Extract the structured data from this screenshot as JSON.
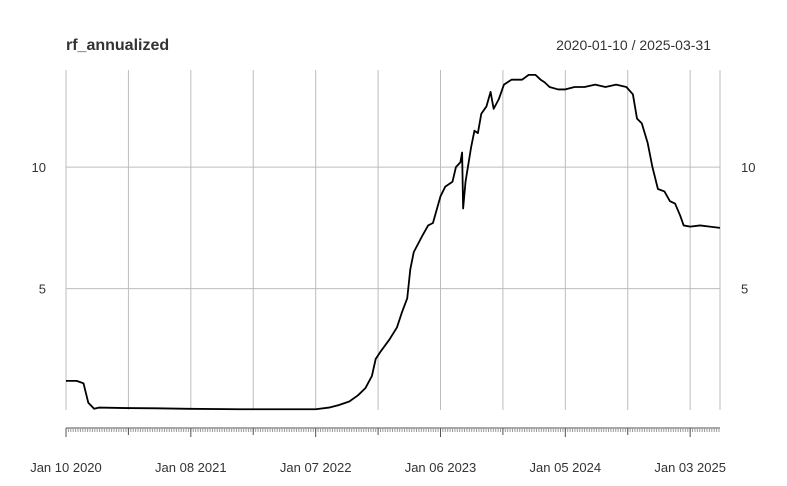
{
  "chart_data": {
    "type": "line",
    "title": "rf_annualized",
    "date_range": "2020-01-10 / 2025-03-31",
    "x_start": "2020-01-10",
    "x_end": "2025-03-31",
    "ylim": [
      0,
      14
    ],
    "y_ticks": [
      5,
      10
    ],
    "y_tick_labels": [
      "5",
      "10"
    ],
    "grid": true,
    "x_major_ticks": [
      {
        "date": "2020-01-10",
        "label": "Jan 10 2020"
      },
      {
        "date": "2021-01-08",
        "label": "Jan 08 2021"
      },
      {
        "date": "2022-01-07",
        "label": "Jan 07 2022"
      },
      {
        "date": "2023-01-06",
        "label": "Jan 06 2023"
      },
      {
        "date": "2024-01-05",
        "label": "Jan 05 2024"
      },
      {
        "date": "2025-01-03",
        "label": "Jan 03 2025"
      }
    ],
    "x_grid_dates": [
      "2020-07-10",
      "2021-07-09",
      "2022-07-08",
      "2023-07-07",
      "2024-07-05"
    ],
    "series": [
      {
        "name": "",
        "points": [
          [
            "2020-01-10",
            1.2
          ],
          [
            "2020-02-10",
            1.2
          ],
          [
            "2020-03-01",
            1.1
          ],
          [
            "2020-03-15",
            0.3
          ],
          [
            "2020-04-01",
            0.05
          ],
          [
            "2020-04-15",
            0.1
          ],
          [
            "2020-07-01",
            0.08
          ],
          [
            "2020-10-01",
            0.07
          ],
          [
            "2021-01-01",
            0.05
          ],
          [
            "2021-06-01",
            0.03
          ],
          [
            "2022-01-07",
            0.03
          ],
          [
            "2022-02-15",
            0.1
          ],
          [
            "2022-03-15",
            0.2
          ],
          [
            "2022-04-15",
            0.35
          ],
          [
            "2022-05-10",
            0.6
          ],
          [
            "2022-06-01",
            0.9
          ],
          [
            "2022-06-20",
            1.4
          ],
          [
            "2022-07-01",
            2.1
          ],
          [
            "2022-07-15",
            2.4
          ],
          [
            "2022-08-10",
            2.9
          ],
          [
            "2022-09-01",
            3.4
          ],
          [
            "2022-09-15",
            4.0
          ],
          [
            "2022-10-01",
            4.6
          ],
          [
            "2022-10-10",
            5.8
          ],
          [
            "2022-10-20",
            6.5
          ],
          [
            "2022-11-15",
            7.2
          ],
          [
            "2022-12-01",
            7.6
          ],
          [
            "2022-12-15",
            7.7
          ],
          [
            "2023-01-06",
            8.8
          ],
          [
            "2023-01-20",
            9.2
          ],
          [
            "2023-02-10",
            9.4
          ],
          [
            "2023-02-20",
            10.0
          ],
          [
            "2023-03-05",
            10.2
          ],
          [
            "2023-03-10",
            10.6
          ],
          [
            "2023-03-13",
            8.3
          ],
          [
            "2023-03-20",
            9.4
          ],
          [
            "2023-04-05",
            10.8
          ],
          [
            "2023-04-15",
            11.5
          ],
          [
            "2023-04-25",
            11.4
          ],
          [
            "2023-05-05",
            12.2
          ],
          [
            "2023-05-20",
            12.5
          ],
          [
            "2023-06-01",
            13.1
          ],
          [
            "2023-06-10",
            12.4
          ],
          [
            "2023-06-25",
            12.8
          ],
          [
            "2023-07-10",
            13.4
          ],
          [
            "2023-08-01",
            13.6
          ],
          [
            "2023-09-01",
            13.6
          ],
          [
            "2023-09-20",
            13.8
          ],
          [
            "2023-10-10",
            13.8
          ],
          [
            "2023-10-25",
            13.6
          ],
          [
            "2023-11-05",
            13.5
          ],
          [
            "2023-11-20",
            13.3
          ],
          [
            "2023-12-15",
            13.2
          ],
          [
            "2024-01-05",
            13.2
          ],
          [
            "2024-02-01",
            13.3
          ],
          [
            "2024-03-01",
            13.3
          ],
          [
            "2024-04-01",
            13.4
          ],
          [
            "2024-05-01",
            13.3
          ],
          [
            "2024-06-01",
            13.4
          ],
          [
            "2024-07-01",
            13.3
          ],
          [
            "2024-07-20",
            13.0
          ],
          [
            "2024-08-01",
            12.0
          ],
          [
            "2024-08-15",
            11.8
          ],
          [
            "2024-09-01",
            11.0
          ],
          [
            "2024-09-15",
            10.0
          ],
          [
            "2024-10-01",
            9.1
          ],
          [
            "2024-10-20",
            9.0
          ],
          [
            "2024-11-05",
            8.6
          ],
          [
            "2024-11-20",
            8.5
          ],
          [
            "2024-12-05",
            8.0
          ],
          [
            "2024-12-15",
            7.6
          ],
          [
            "2025-01-03",
            7.55
          ],
          [
            "2025-02-01",
            7.6
          ],
          [
            "2025-03-01",
            7.55
          ],
          [
            "2025-03-31",
            7.5
          ]
        ]
      }
    ]
  }
}
